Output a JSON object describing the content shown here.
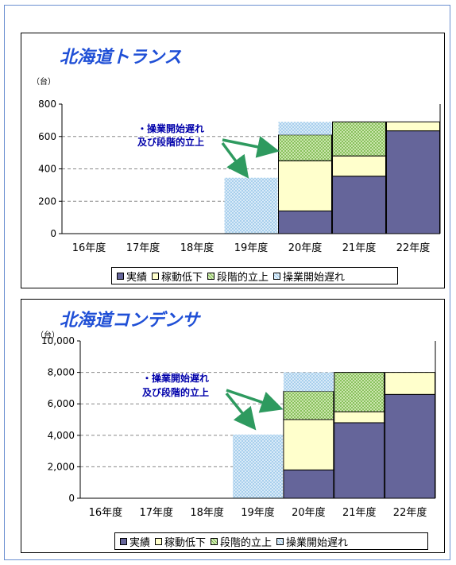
{
  "colors": {
    "actual": "#65659a",
    "low": "#ffffcc",
    "ramp": "#99cc66",
    "delay": "#cce4f7",
    "title": "#1f4fd6",
    "annotation": "#0000aa",
    "arrow": "#2e9a5f"
  },
  "chart_data": [
    {
      "type": "bar",
      "title": "北海道トランス",
      "unit": "（台）",
      "categories": [
        "16年度",
        "17年度",
        "18年度",
        "19年度",
        "20年度",
        "21年度",
        "22年度"
      ],
      "yticks": [
        "800",
        "600",
        "400",
        "200",
        "0"
      ],
      "ylim": [
        0,
        800
      ],
      "stacked": true,
      "grid": true,
      "legend_position": "bottom",
      "series": [
        {
          "name": "実績",
          "color_key": "actual",
          "values": [
            0,
            0,
            0,
            0,
            140,
            355,
            635
          ]
        },
        {
          "name": "稼動低下",
          "color_key": "low",
          "values": [
            0,
            0,
            0,
            0,
            310,
            125,
            55
          ]
        },
        {
          "name": "段階的立上",
          "color_key": "ramp",
          "values": [
            0,
            0,
            0,
            0,
            160,
            210,
            0
          ]
        },
        {
          "name": "操業開始遅れ",
          "color_key": "delay",
          "values": [
            0,
            0,
            0,
            345,
            80,
            0,
            0
          ]
        }
      ],
      "annotation": {
        "line1": "・操業開始遅れ",
        "line2": "及び段階的立上"
      }
    },
    {
      "type": "bar",
      "title": "北海道コンデンサ",
      "unit": "（台）",
      "categories": [
        "16年度",
        "17年度",
        "18年度",
        "19年度",
        "20年度",
        "21年度",
        "22年度"
      ],
      "yticks": [
        "10,000",
        "8,000",
        "6,000",
        "4,000",
        "2,000",
        "0"
      ],
      "ylim": [
        0,
        10000
      ],
      "stacked": true,
      "grid": true,
      "legend_position": "bottom",
      "series": [
        {
          "name": "実績",
          "color_key": "actual",
          "values": [
            0,
            0,
            0,
            0,
            1800,
            4800,
            6600
          ]
        },
        {
          "name": "稼動低下",
          "color_key": "low",
          "values": [
            0,
            0,
            0,
            0,
            3200,
            700,
            1400
          ]
        },
        {
          "name": "段階的立上",
          "color_key": "ramp",
          "values": [
            0,
            0,
            0,
            0,
            1800,
            2500,
            0
          ]
        },
        {
          "name": "操業開始遅れ",
          "color_key": "delay",
          "values": [
            0,
            0,
            0,
            4050,
            1200,
            0,
            0
          ]
        }
      ],
      "annotation": {
        "line1": "・操業開始遅れ",
        "line2": "及び段階的立上"
      }
    }
  ]
}
